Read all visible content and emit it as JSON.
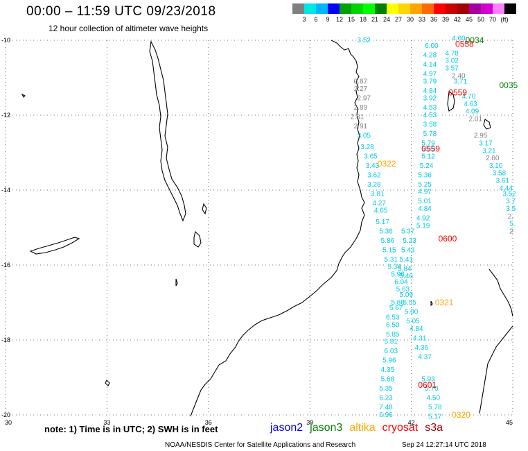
{
  "title": "00:00 – 11:59 UTC 09/23/2018",
  "subtitle": "12 hour collection of altimeter wave heights",
  "colorbar": {
    "colors": [
      "#808080",
      "#00e6e6",
      "#00b4ff",
      "#0000ff",
      "#00a000",
      "#00d400",
      "#00ff00",
      "#008000",
      "#ffff00",
      "#ffd700",
      "#ffa500",
      "#ff6a00",
      "#ff0000",
      "#c80000",
      "#a00000",
      "#a000a0",
      "#d000d0",
      "#ff80ff",
      "#000000"
    ],
    "labels": [
      "3",
      "6",
      "9",
      "12",
      "15",
      "18",
      "21",
      "24",
      "27",
      "30",
      "33",
      "36",
      "39",
      "42",
      "45",
      "50",
      "70",
      "(ft)"
    ]
  },
  "axes": {
    "lat_ticks": [
      "-10",
      "-12",
      "-14",
      "-16",
      "-18",
      "-20"
    ],
    "lon_ticks": [
      "30",
      "33",
      "36",
      "39",
      "42",
      "45"
    ]
  },
  "note": "note: 1) Time is in UTC; 2) SWH is in feet",
  "legend": [
    {
      "label": "jason2",
      "color": "#0000ff"
    },
    {
      "label": "jason3",
      "color": "#008000"
    },
    {
      "label": "altika",
      "color": "#ffa500"
    },
    {
      "label": "cryosat",
      "color": "#ff0000"
    },
    {
      "label": "s3a",
      "color": "#a00000"
    }
  ],
  "footer": "NOAA/NESDIS Center for Satellite Applications and Research",
  "timestamp": "Sep 24 12:27:14 UTC 2018",
  "track_times": [
    {
      "text": "0034",
      "lon": 43.6,
      "lat": -10.0,
      "color": "#008000"
    },
    {
      "text": "0558",
      "lon": 43.3,
      "lat": -10.1,
      "color": "#ff0000"
    },
    {
      "text": "0035",
      "lon": 44.6,
      "lat": -11.2,
      "color": "#008000"
    },
    {
      "text": "0559",
      "lon": 43.1,
      "lat": -11.4,
      "color": "#ff0000"
    },
    {
      "text": "0559",
      "lon": 42.3,
      "lat": -12.9,
      "color": "#ff0000"
    },
    {
      "text": "0322",
      "lon": 41.0,
      "lat": -13.3,
      "color": "#ffa500"
    },
    {
      "text": "0600",
      "lon": 42.8,
      "lat": -15.3,
      "color": "#ff0000"
    },
    {
      "text": "0321",
      "lon": 42.7,
      "lat": -17.0,
      "color": "#ffa500"
    },
    {
      "text": "0601",
      "lon": 42.2,
      "lat": -19.2,
      "color": "#ff0000"
    },
    {
      "text": "0320",
      "lon": 43.2,
      "lat": -20.0,
      "color": "#ffa500"
    }
  ],
  "observations": [
    {
      "text": "3.52",
      "lon": 40.4,
      "lat": -10.0,
      "color": "#00c8e6"
    },
    {
      "text": "4.60",
      "lon": 43.2,
      "lat": -9.95,
      "color": "#00c8e6"
    },
    {
      "text": "6.00",
      "lon": 42.4,
      "lat": -10.15,
      "color": "#00c8e6"
    },
    {
      "text": "4.78",
      "lon": 43.0,
      "lat": -10.35,
      "color": "#00c8e6"
    },
    {
      "text": "4.28",
      "lon": 42.35,
      "lat": -10.4,
      "color": "#00c8e6"
    },
    {
      "text": "3.02",
      "lon": 43.0,
      "lat": -10.55,
      "color": "#00c8e6"
    },
    {
      "text": "4.14",
      "lon": 42.35,
      "lat": -10.65,
      "color": "#00c8e6"
    },
    {
      "text": "3.57",
      "lon": 43.0,
      "lat": -10.75,
      "color": "#00c8e6"
    },
    {
      "text": "2.40",
      "lon": 43.2,
      "lat": -10.95,
      "color": "#808080"
    },
    {
      "text": "4.97",
      "lon": 42.35,
      "lat": -10.9,
      "color": "#00c8e6"
    },
    {
      "text": "3.71",
      "lon": 43.25,
      "lat": -11.1,
      "color": "#00c8e6"
    },
    {
      "text": "3.79",
      "lon": 42.35,
      "lat": -11.1,
      "color": "#00c8e6"
    },
    {
      "text": "0.87",
      "lon": 40.3,
      "lat": -11.1,
      "color": "#808080"
    },
    {
      "text": "2.27",
      "lon": 40.3,
      "lat": -11.3,
      "color": "#808080"
    },
    {
      "text": "4.84",
      "lon": 42.35,
      "lat": -11.35,
      "color": "#00c8e6"
    },
    {
      "text": "4.70",
      "lon": 43.5,
      "lat": -11.5,
      "color": "#00c8e6"
    },
    {
      "text": "2.97",
      "lon": 40.4,
      "lat": -11.55,
      "color": "#808080"
    },
    {
      "text": "3.92",
      "lon": 42.35,
      "lat": -11.55,
      "color": "#00c8e6"
    },
    {
      "text": "4.63",
      "lon": 43.55,
      "lat": -11.7,
      "color": "#00c8e6"
    },
    {
      "text": "4.53",
      "lon": 42.35,
      "lat": -11.8,
      "color": "#00c8e6"
    },
    {
      "text": "2.89",
      "lon": 40.3,
      "lat": -11.8,
      "color": "#808080"
    },
    {
      "text": "4.09",
      "lon": 43.6,
      "lat": -11.9,
      "color": "#00c8e6"
    },
    {
      "text": "2.81",
      "lon": 40.2,
      "lat": -12.05,
      "color": "#808080"
    },
    {
      "text": "4.53",
      "lon": 42.35,
      "lat": -12.0,
      "color": "#00c8e6"
    },
    {
      "text": "2.01",
      "lon": 43.7,
      "lat": -12.1,
      "color": "#808080"
    },
    {
      "text": "2.91",
      "lon": 40.3,
      "lat": -12.3,
      "color": "#808080"
    },
    {
      "text": "3.58",
      "lon": 42.35,
      "lat": -12.25,
      "color": "#00c8e6"
    },
    {
      "text": "2.95",
      "lon": 43.85,
      "lat": -12.55,
      "color": "#808080"
    },
    {
      "text": "3.05",
      "lon": 40.4,
      "lat": -12.55,
      "color": "#00c8e6"
    },
    {
      "text": "5.78",
      "lon": 42.35,
      "lat": -12.5,
      "color": "#00c8e6"
    },
    {
      "text": "3.17",
      "lon": 44.0,
      "lat": -12.75,
      "color": "#00c8e6"
    },
    {
      "text": "5.79",
      "lon": 42.3,
      "lat": -12.75,
      "color": "#00c8e6"
    },
    {
      "text": "3.28",
      "lon": 40.5,
      "lat": -12.85,
      "color": "#00c8e6"
    },
    {
      "text": "5.69",
      "lon": 42.3,
      "lat": -12.9,
      "color": "#00c8e6"
    },
    {
      "text": "3.21",
      "lon": 44.1,
      "lat": -12.95,
      "color": "#00c8e6"
    },
    {
      "text": "3.65",
      "lon": 40.6,
      "lat": -13.1,
      "color": "#00c8e6"
    },
    {
      "text": "5.12",
      "lon": 42.3,
      "lat": -13.1,
      "color": "#00c8e6"
    },
    {
      "text": "2.60",
      "lon": 44.2,
      "lat": -13.15,
      "color": "#808080"
    },
    {
      "text": "3.43",
      "lon": 40.65,
      "lat": -13.35,
      "color": "#00c8e6"
    },
    {
      "text": "5.24",
      "lon": 42.25,
      "lat": -13.35,
      "color": "#00c8e6"
    },
    {
      "text": "3.10",
      "lon": 44.3,
      "lat": -13.35,
      "color": "#00c8e6"
    },
    {
      "text": "3.62",
      "lon": 40.7,
      "lat": -13.6,
      "color": "#00c8e6"
    },
    {
      "text": "5.36",
      "lon": 42.2,
      "lat": -13.6,
      "color": "#00c8e6"
    },
    {
      "text": "3.58",
      "lon": 44.4,
      "lat": -13.55,
      "color": "#00c8e6"
    },
    {
      "text": "3.61",
      "lon": 44.5,
      "lat": -13.75,
      "color": "#00c8e6"
    },
    {
      "text": "3.28",
      "lon": 40.7,
      "lat": -13.85,
      "color": "#00c8e6"
    },
    {
      "text": "5.25",
      "lon": 42.2,
      "lat": -13.85,
      "color": "#00c8e6"
    },
    {
      "text": "4.44",
      "lon": 44.6,
      "lat": -13.95,
      "color": "#00c8e6"
    },
    {
      "text": "3.81",
      "lon": 40.8,
      "lat": -14.1,
      "color": "#00c8e6"
    },
    {
      "text": "4.97",
      "lon": 42.2,
      "lat": -14.05,
      "color": "#00c8e6"
    },
    {
      "text": "3.52",
      "lon": 44.7,
      "lat": -14.1,
      "color": "#00c8e6"
    },
    {
      "text": "4.27",
      "lon": 40.85,
      "lat": -14.35,
      "color": "#00c8e6"
    },
    {
      "text": "5.01",
      "lon": 42.2,
      "lat": -14.3,
      "color": "#00c8e6"
    },
    {
      "text": "3.7",
      "lon": 44.8,
      "lat": -14.3,
      "color": "#00c8e6"
    },
    {
      "text": "4.65",
      "lon": 40.9,
      "lat": -14.55,
      "color": "#00c8e6"
    },
    {
      "text": "4.84",
      "lon": 42.2,
      "lat": -14.5,
      "color": "#00c8e6"
    },
    {
      "text": "3.5",
      "lon": 44.8,
      "lat": -14.5,
      "color": "#00c8e6"
    },
    {
      "text": "5.17",
      "lon": 40.95,
      "lat": -14.85,
      "color": "#00c8e6"
    },
    {
      "text": "4.92",
      "lon": 42.15,
      "lat": -14.75,
      "color": "#00c8e6"
    },
    {
      "text": "2.",
      "lon": 44.85,
      "lat": -14.7,
      "color": "#808080"
    },
    {
      "text": "5.19",
      "lon": 42.15,
      "lat": -14.95,
      "color": "#00c8e6"
    },
    {
      "text": "5.36",
      "lon": 41.05,
      "lat": -15.1,
      "color": "#00c8e6"
    },
    {
      "text": "5.37",
      "lon": 41.7,
      "lat": -15.1,
      "color": "#00c8e6"
    },
    {
      "text": "5.",
      "lon": 44.9,
      "lat": -14.9,
      "color": "#00c8e6"
    },
    {
      "text": "2",
      "lon": 44.9,
      "lat": -15.1,
      "color": "#808080"
    },
    {
      "text": "5.86",
      "lon": 41.1,
      "lat": -15.35,
      "color": "#00c8e6"
    },
    {
      "text": "5.23",
      "lon": 41.75,
      "lat": -15.35,
      "color": "#00c8e6"
    },
    {
      "text": "5.15",
      "lon": 41.15,
      "lat": -15.6,
      "color": "#00c8e6"
    },
    {
      "text": "5.43",
      "lon": 41.7,
      "lat": -15.6,
      "color": "#00c8e6"
    },
    {
      "text": "5.31",
      "lon": 41.2,
      "lat": -15.85,
      "color": "#00c8e6"
    },
    {
      "text": "5.41",
      "lon": 41.65,
      "lat": -15.85,
      "color": "#00c8e6"
    },
    {
      "text": "5.34",
      "lon": 41.3,
      "lat": -16.05,
      "color": "#00c8e6"
    },
    {
      "text": "5.84",
      "lon": 41.6,
      "lat": -16.1,
      "color": "#00c8e6"
    },
    {
      "text": "5.96",
      "lon": 41.4,
      "lat": -16.25,
      "color": "#00c8e6"
    },
    {
      "text": "5.46",
      "lon": 41.65,
      "lat": -16.3,
      "color": "#00c8e6"
    },
    {
      "text": "6.04",
      "lon": 41.5,
      "lat": -16.45,
      "color": "#00c8e6"
    },
    {
      "text": "5.63",
      "lon": 41.55,
      "lat": -16.65,
      "color": "#00c8e6"
    },
    {
      "text": "5.09",
      "lon": 41.65,
      "lat": -16.8,
      "color": "#00c8e6"
    },
    {
      "text": "5.86",
      "lon": 41.4,
      "lat": -17.0,
      "color": "#00c8e6"
    },
    {
      "text": "5.55",
      "lon": 41.75,
      "lat": -17.0,
      "color": "#00c8e6"
    },
    {
      "text": "5.67",
      "lon": 41.35,
      "lat": -17.15,
      "color": "#00c8e6"
    },
    {
      "text": "5.00",
      "lon": 41.8,
      "lat": -17.25,
      "color": "#00c8e6"
    },
    {
      "text": "6.53",
      "lon": 41.25,
      "lat": -17.4,
      "color": "#00c8e6"
    },
    {
      "text": "5.05",
      "lon": 41.85,
      "lat": -17.5,
      "color": "#00c8e6"
    },
    {
      "text": "6.50",
      "lon": 41.25,
      "lat": -17.6,
      "color": "#00c8e6"
    },
    {
      "text": "4.84",
      "lon": 41.95,
      "lat": -17.7,
      "color": "#00c8e6"
    },
    {
      "text": "5.85",
      "lon": 41.25,
      "lat": -17.85,
      "color": "#00c8e6"
    },
    {
      "text": "4.31",
      "lon": 42.05,
      "lat": -17.95,
      "color": "#00c8e6"
    },
    {
      "text": "5.81",
      "lon": 41.2,
      "lat": -18.05,
      "color": "#00c8e6"
    },
    {
      "text": "4.36",
      "lon": 42.1,
      "lat": -18.2,
      "color": "#00c8e6"
    },
    {
      "text": "6.03",
      "lon": 41.2,
      "lat": -18.3,
      "color": "#00c8e6"
    },
    {
      "text": "4.37",
      "lon": 42.2,
      "lat": -18.45,
      "color": "#00c8e6"
    },
    {
      "text": "5.96",
      "lon": 41.15,
      "lat": -18.55,
      "color": "#00c8e6"
    },
    {
      "text": "4.35",
      "lon": 41.1,
      "lat": -18.8,
      "color": "#00c8e6"
    },
    {
      "text": "5.93",
      "lon": 42.3,
      "lat": -19.05,
      "color": "#00c8e6"
    },
    {
      "text": "5.68",
      "lon": 41.1,
      "lat": -19.05,
      "color": "#00c8e6"
    },
    {
      "text": "5.70",
      "lon": 42.4,
      "lat": -19.3,
      "color": "#00c8e6"
    },
    {
      "text": "5.35",
      "lon": 41.05,
      "lat": -19.3,
      "color": "#00c8e6"
    },
    {
      "text": "6.23",
      "lon": 41.05,
      "lat": -19.55,
      "color": "#00c8e6"
    },
    {
      "text": "4.50",
      "lon": 42.45,
      "lat": -19.55,
      "color": "#00c8e6"
    },
    {
      "text": "7.48",
      "lon": 41.05,
      "lat": -19.8,
      "color": "#00c8e6"
    },
    {
      "text": "5.78",
      "lon": 42.5,
      "lat": -19.8,
      "color": "#00c8e6"
    },
    {
      "text": "6.96",
      "lon": 41.05,
      "lat": -20.0,
      "color": "#00c8e6"
    },
    {
      "text": "5.17",
      "lon": 42.5,
      "lat": -20.05,
      "color": "#00c8e6"
    }
  ]
}
